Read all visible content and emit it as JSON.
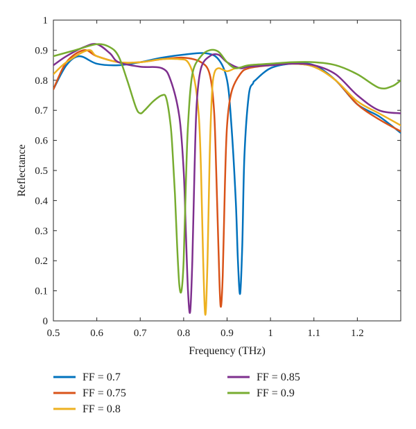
{
  "chart_data": {
    "type": "line",
    "xlabel": "Frequency (THz)",
    "ylabel": "Reflectance",
    "xlim": [
      0.5,
      1.3
    ],
    "ylim": [
      0,
      1
    ],
    "xticks": [
      "0.5",
      "0.6",
      "0.7",
      "0.8",
      "0.9",
      "1",
      "1.1",
      "1.2"
    ],
    "yticks": [
      "0",
      "0.1",
      "0.2",
      "0.3",
      "0.4",
      "0.5",
      "0.6",
      "0.7",
      "0.8",
      "0.9",
      "1"
    ],
    "grid": false,
    "legend_placement": "bottom",
    "series": [
      {
        "name": "FF = 0.7",
        "color": "#0072BD",
        "x": [
          0.5,
          0.53,
          0.56,
          0.6,
          0.65,
          0.7,
          0.75,
          0.8,
          0.85,
          0.88,
          0.9,
          0.91,
          0.92,
          0.925,
          0.93,
          0.935,
          0.94,
          0.95,
          0.96,
          0.965,
          1.0,
          1.05,
          1.1,
          1.15,
          1.2,
          1.25,
          1.3
        ],
        "y": [
          0.77,
          0.85,
          0.88,
          0.855,
          0.85,
          0.86,
          0.875,
          0.885,
          0.89,
          0.87,
          0.8,
          0.65,
          0.4,
          0.2,
          0.09,
          0.25,
          0.55,
          0.75,
          0.79,
          0.8,
          0.84,
          0.855,
          0.85,
          0.8,
          0.72,
          0.68,
          0.625
        ]
      },
      {
        "name": "FF = 0.75",
        "color": "#D95319",
        "x": [
          0.5,
          0.53,
          0.57,
          0.6,
          0.65,
          0.7,
          0.75,
          0.8,
          0.84,
          0.86,
          0.87,
          0.875,
          0.88,
          0.885,
          0.89,
          0.895,
          0.9,
          0.91,
          0.93,
          0.95,
          1.0,
          1.05,
          1.1,
          1.15,
          1.2,
          1.25,
          1.3
        ],
        "y": [
          0.77,
          0.86,
          0.9,
          0.88,
          0.86,
          0.86,
          0.87,
          0.875,
          0.86,
          0.82,
          0.7,
          0.5,
          0.25,
          0.05,
          0.15,
          0.45,
          0.65,
          0.76,
          0.82,
          0.84,
          0.85,
          0.855,
          0.845,
          0.8,
          0.72,
          0.67,
          0.63
        ]
      },
      {
        "name": "FF = 0.8",
        "color": "#EDB120",
        "x": [
          0.5,
          0.53,
          0.58,
          0.6,
          0.65,
          0.7,
          0.75,
          0.79,
          0.81,
          0.825,
          0.835,
          0.84,
          0.845,
          0.85,
          0.855,
          0.86,
          0.865,
          0.87,
          0.88,
          0.9,
          0.92,
          0.95,
          1.0,
          1.05,
          1.1,
          1.15,
          1.2,
          1.25,
          1.3
        ],
        "y": [
          0.82,
          0.86,
          0.9,
          0.88,
          0.86,
          0.86,
          0.87,
          0.87,
          0.86,
          0.8,
          0.68,
          0.5,
          0.2,
          0.02,
          0.2,
          0.55,
          0.75,
          0.82,
          0.84,
          0.83,
          0.84,
          0.845,
          0.85,
          0.855,
          0.845,
          0.8,
          0.73,
          0.69,
          0.65
        ]
      },
      {
        "name": "FF = 0.85",
        "color": "#7E2F8E",
        "x": [
          0.5,
          0.53,
          0.57,
          0.6,
          0.63,
          0.65,
          0.7,
          0.75,
          0.77,
          0.79,
          0.8,
          0.805,
          0.81,
          0.815,
          0.82,
          0.825,
          0.83,
          0.84,
          0.86,
          0.88,
          0.9,
          0.93,
          0.95,
          1.0,
          1.05,
          1.1,
          1.15,
          1.2,
          1.25,
          1.3
        ],
        "y": [
          0.85,
          0.88,
          0.91,
          0.92,
          0.89,
          0.86,
          0.845,
          0.84,
          0.8,
          0.68,
          0.5,
          0.3,
          0.1,
          0.03,
          0.2,
          0.5,
          0.72,
          0.84,
          0.88,
          0.885,
          0.86,
          0.84,
          0.845,
          0.85,
          0.855,
          0.85,
          0.82,
          0.75,
          0.7,
          0.69
        ]
      },
      {
        "name": "FF = 0.9",
        "color": "#77AC30",
        "x": [
          0.5,
          0.55,
          0.6,
          0.63,
          0.65,
          0.67,
          0.69,
          0.7,
          0.71,
          0.73,
          0.75,
          0.76,
          0.77,
          0.775,
          0.78,
          0.785,
          0.79,
          0.795,
          0.8,
          0.805,
          0.81,
          0.82,
          0.84,
          0.86,
          0.88,
          0.9,
          0.92,
          0.95,
          1.0,
          1.05,
          1.1,
          1.15,
          1.2,
          1.25,
          1.28,
          1.3
        ],
        "y": [
          0.88,
          0.9,
          0.92,
          0.91,
          0.88,
          0.8,
          0.71,
          0.69,
          0.7,
          0.73,
          0.75,
          0.74,
          0.65,
          0.55,
          0.42,
          0.25,
          0.12,
          0.1,
          0.2,
          0.45,
          0.65,
          0.82,
          0.88,
          0.9,
          0.895,
          0.86,
          0.84,
          0.85,
          0.855,
          0.86,
          0.86,
          0.85,
          0.82,
          0.775,
          0.78,
          0.8
        ]
      }
    ]
  }
}
